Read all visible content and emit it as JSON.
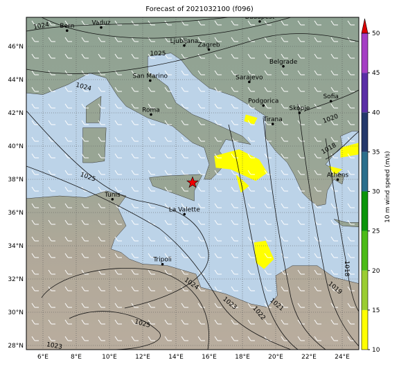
{
  "title": "Forecast of 2021032100 (f096)",
  "map": {
    "lon_ticks": [
      {
        "value": 6,
        "label": "6°E"
      },
      {
        "value": 8,
        "label": "8°E"
      },
      {
        "value": 10,
        "label": "10°E"
      },
      {
        "value": 12,
        "label": "12°E"
      },
      {
        "value": 14,
        "label": "14°E"
      },
      {
        "value": 16,
        "label": "16°E"
      },
      {
        "value": 18,
        "label": "18°E"
      },
      {
        "value": 20,
        "label": "20°E"
      },
      {
        "value": 22,
        "label": "22°E"
      },
      {
        "value": 24,
        "label": "24°E"
      }
    ],
    "lat_ticks": [
      {
        "value": 28,
        "label": "28°N"
      },
      {
        "value": 30,
        "label": "30°N"
      },
      {
        "value": 32,
        "label": "32°N"
      },
      {
        "value": 34,
        "label": "34°N"
      },
      {
        "value": 36,
        "label": "36°N"
      },
      {
        "value": 38,
        "label": "38°N"
      },
      {
        "value": 40,
        "label": "40°N"
      },
      {
        "value": 42,
        "label": "42°N"
      },
      {
        "value": 44,
        "label": "44°N"
      },
      {
        "value": 46,
        "label": "46°N"
      }
    ],
    "cities": [
      "Bern",
      "Vaduz",
      "Budapest",
      "Ljubljana",
      "Zagreb",
      "Belgrade",
      "San Marino",
      "Sarajevo",
      "Roma",
      "Podgorica",
      "Skopje",
      "Sofia",
      "Tirana",
      "Athens",
      "Tunis",
      "La Valette",
      "Tripoli"
    ],
    "isobar_labels": [
      "1024",
      "1025",
      "1024",
      "1025",
      "1024",
      "1023",
      "1022",
      "1021",
      "1019",
      "1018",
      "1018",
      "1020",
      "1025",
      "1023"
    ]
  },
  "colorbar": {
    "label": "10 m wind speed (m/s)",
    "ticks": [
      10,
      15,
      20,
      25,
      30,
      35,
      40,
      45,
      50
    ],
    "colors": [
      "#ffff00",
      "#9acd32",
      "#4cbb17",
      "#0a940a",
      "#2b6f8c",
      "#24386b",
      "#5a2ea6",
      "#a53fc4"
    ],
    "extend_color": "#dd0000"
  }
}
